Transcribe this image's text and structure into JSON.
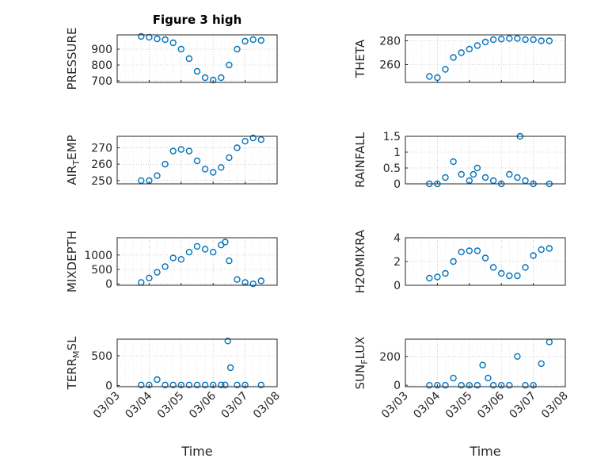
{
  "figure": {
    "title": "Figure 3 high",
    "xlabel": "Time"
  },
  "chart_data": [
    {
      "type": "scatter",
      "ylabel": "PRESSURE",
      "ylim": [
        690,
        990
      ],
      "yticks": [
        700,
        800,
        900
      ],
      "grid": true,
      "x": [
        "03/03 18:00",
        "03/04 00:00",
        "03/04 06:00",
        "03/04 12:00",
        "03/04 18:00",
        "03/05 00:00",
        "03/05 06:00",
        "03/05 12:00",
        "03/05 18:00",
        "03/06 00:00",
        "03/06 06:00",
        "03/06 12:00",
        "03/06 18:00",
        "03/07 00:00",
        "03/07 06:00",
        "03/07 12:00"
      ],
      "y": [
        980,
        975,
        965,
        960,
        940,
        900,
        840,
        760,
        720,
        705,
        720,
        800,
        900,
        950,
        960,
        955
      ]
    },
    {
      "type": "scatter",
      "ylabel": "THETA",
      "ylim": [
        245,
        285
      ],
      "yticks": [
        260,
        280
      ],
      "grid": true,
      "x": [
        "03/03 18:00",
        "03/04 00:00",
        "03/04 06:00",
        "03/04 12:00",
        "03/04 18:00",
        "03/05 00:00",
        "03/05 06:00",
        "03/05 12:00",
        "03/05 18:00",
        "03/06 00:00",
        "03/06 06:00",
        "03/06 12:00",
        "03/06 18:00",
        "03/07 00:00",
        "03/07 06:00",
        "03/07 12:00"
      ],
      "y": [
        250,
        249,
        256,
        266,
        270,
        273,
        276,
        279,
        281,
        281.5,
        282,
        282,
        281,
        281,
        280,
        280
      ]
    },
    {
      "type": "scatter",
      "ylabel": "AIR_TEMP",
      "ylim": [
        248,
        277
      ],
      "yticks": [
        250,
        260,
        270
      ],
      "grid": true,
      "x": [
        "03/03 18:00",
        "03/04 00:00",
        "03/04 06:00",
        "03/04 12:00",
        "03/04 18:00",
        "03/05 00:00",
        "03/05 06:00",
        "03/05 12:00",
        "03/05 18:00",
        "03/06 00:00",
        "03/06 06:00",
        "03/06 12:00",
        "03/06 18:00",
        "03/07 00:00",
        "03/07 06:00",
        "03/07 12:00"
      ],
      "y": [
        250,
        250,
        253,
        260,
        268,
        269,
        268,
        262,
        257,
        255,
        258,
        264,
        270,
        274,
        276,
        275
      ]
    },
    {
      "type": "scatter",
      "ylabel": "RAINFALL",
      "ylim": [
        0,
        1.5
      ],
      "yticks": [
        0,
        0.5,
        1,
        1.5
      ],
      "grid": true,
      "x": [
        "03/03 18:00",
        "03/04 00:00",
        "03/04 06:00",
        "03/04 12:00",
        "03/04 18:00",
        "03/05 00:00",
        "03/05 03:00",
        "03/05 06:00",
        "03/05 12:00",
        "03/05 18:00",
        "03/06 00:00",
        "03/06 06:00",
        "03/06 12:00",
        "03/06 14:00",
        "03/06 18:00",
        "03/07 00:00",
        "03/07 12:00"
      ],
      "y": [
        0,
        0,
        0.2,
        0.7,
        0.3,
        0.1,
        0.3,
        0.5,
        0.2,
        0.1,
        0,
        0.3,
        0.2,
        1.5,
        0.1,
        0,
        0
      ]
    },
    {
      "type": "scatter",
      "ylabel": "MIXDEPTH",
      "ylim": [
        -50,
        1600
      ],
      "yticks": [
        0,
        500,
        1000
      ],
      "grid": true,
      "x": [
        "03/03 18:00",
        "03/04 00:00",
        "03/04 06:00",
        "03/04 12:00",
        "03/04 18:00",
        "03/05 00:00",
        "03/05 06:00",
        "03/05 12:00",
        "03/05 18:00",
        "03/06 00:00",
        "03/06 06:00",
        "03/06 09:00",
        "03/06 12:00",
        "03/06 18:00",
        "03/07 00:00",
        "03/07 06:00",
        "03/07 12:00"
      ],
      "y": [
        50,
        200,
        400,
        600,
        900,
        850,
        1100,
        1300,
        1200,
        1100,
        1350,
        1450,
        800,
        150,
        50,
        0,
        100
      ]
    },
    {
      "type": "scatter",
      "ylabel": "H2OMIXRA",
      "ylim": [
        0,
        4
      ],
      "yticks": [
        0,
        2,
        4
      ],
      "grid": true,
      "x": [
        "03/03 18:00",
        "03/04 00:00",
        "03/04 06:00",
        "03/04 12:00",
        "03/04 18:00",
        "03/05 00:00",
        "03/05 06:00",
        "03/05 12:00",
        "03/05 18:00",
        "03/06 00:00",
        "03/06 06:00",
        "03/06 12:00",
        "03/06 18:00",
        "03/07 00:00",
        "03/07 06:00",
        "03/07 12:00"
      ],
      "y": [
        0.6,
        0.7,
        1.0,
        2.0,
        2.8,
        2.9,
        2.9,
        2.3,
        1.5,
        1.0,
        0.8,
        0.8,
        1.5,
        2.5,
        3.0,
        3.1
      ]
    },
    {
      "type": "scatter",
      "ylabel": "TERR_MSL",
      "ylim": [
        -20,
        780
      ],
      "yticks": [
        0,
        500
      ],
      "grid": true,
      "x": [
        "03/03 18:00",
        "03/04 00:00",
        "03/04 06:00",
        "03/04 12:00",
        "03/04 18:00",
        "03/05 00:00",
        "03/05 06:00",
        "03/05 12:00",
        "03/05 18:00",
        "03/06 00:00",
        "03/06 06:00",
        "03/06 09:00",
        "03/06 11:00",
        "03/06 13:00",
        "03/06 18:00",
        "03/07 00:00",
        "03/07 12:00"
      ],
      "y": [
        10,
        10,
        100,
        10,
        10,
        10,
        10,
        10,
        10,
        10,
        10,
        10,
        750,
        300,
        10,
        10,
        10
      ]
    },
    {
      "type": "scatter",
      "ylabel": "SUN_FLUX",
      "ylim": [
        -10,
        320
      ],
      "yticks": [
        0,
        200
      ],
      "grid": true,
      "x": [
        "03/03 18:00",
        "03/04 00:00",
        "03/04 06:00",
        "03/04 12:00",
        "03/04 18:00",
        "03/05 00:00",
        "03/05 06:00",
        "03/05 10:00",
        "03/05 14:00",
        "03/05 18:00",
        "03/06 00:00",
        "03/06 06:00",
        "03/06 12:00",
        "03/06 18:00",
        "03/07 00:00",
        "03/07 06:00",
        "03/07 12:00"
      ],
      "y": [
        0,
        0,
        0,
        50,
        0,
        0,
        0,
        140,
        50,
        0,
        0,
        0,
        200,
        0,
        0,
        150,
        300
      ]
    }
  ],
  "x_axis": {
    "range": [
      "03/03 00:00",
      "03/08 00:00"
    ],
    "ticks": [
      "03/03",
      "03/04",
      "03/05",
      "03/06",
      "03/07",
      "03/08"
    ]
  },
  "colors": {
    "marker": "#0072bd"
  }
}
